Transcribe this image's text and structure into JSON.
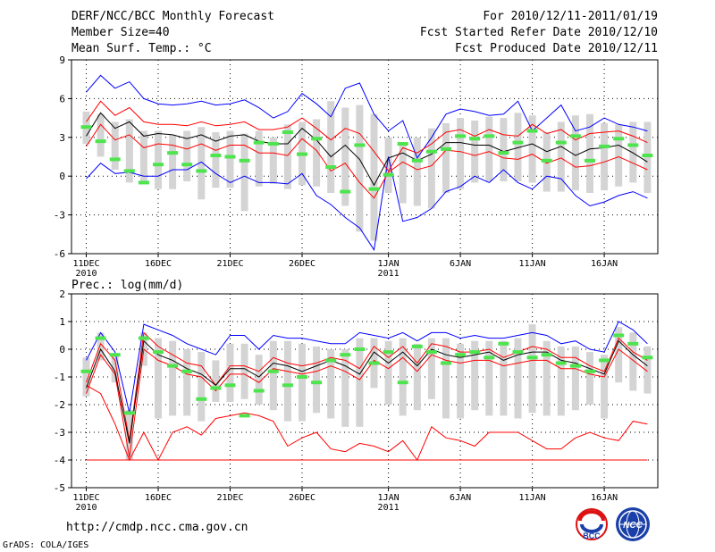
{
  "header": {
    "title": "DERF/NCC/BCC Monthly Forecast",
    "member_size": "Member Size=40",
    "variable": "Mean Surf. Temp.: °C",
    "period": "For 2010/12/11-2011/01/19",
    "start_ref": "Fcst Started Refer Date 2010/12/10",
    "produced": "Fcst Produced Date 2010/12/11"
  },
  "footer": {
    "url": "http://cmdp.ncc.cma.gov.cn",
    "credit": "GrADS: COLA/IGES",
    "logo_bcc": "BCC",
    "logo_ncc": "NCC"
  },
  "colors": {
    "max_min": "#0000ff",
    "spread": "#ff0000",
    "mean": "#000000",
    "obs": "#4ee44e",
    "box": "#d4d4d4",
    "grid": "#000000"
  },
  "chart_data": [
    {
      "type": "box",
      "title": "Mean Surf. Temp.: °C",
      "ylim": [
        -6,
        9
      ],
      "yticks": [
        -6,
        -3,
        0,
        3,
        6,
        9
      ],
      "xticks": [
        {
          "day": 1,
          "label": "11DEC",
          "sub": "2010"
        },
        {
          "day": 6,
          "label": "16DEC"
        },
        {
          "day": 11,
          "label": "21DEC"
        },
        {
          "day": 16,
          "label": "26DEC"
        },
        {
          "day": 22,
          "label": "1JAN",
          "sub": "2011"
        },
        {
          "day": 27,
          "label": "6JAN"
        },
        {
          "day": 32,
          "label": "11JAN"
        },
        {
          "day": 37,
          "label": "16JAN"
        }
      ],
      "days": 40,
      "series": [
        {
          "name": "max",
          "values": [
            6.5,
            7.8,
            6.8,
            7.3,
            6.0,
            5.6,
            5.5,
            5.6,
            5.8,
            5.5,
            5.6,
            5.9,
            5.3,
            4.5,
            5.0,
            6.4,
            5.6,
            4.6,
            6.8,
            7.2,
            4.8,
            3.5,
            4.3,
            1.4,
            3.0,
            4.8,
            5.2,
            5.0,
            4.7,
            4.8,
            5.8,
            3.5,
            4.5,
            5.5,
            3.5,
            3.8,
            4.5,
            4.0,
            3.8,
            3.5
          ]
        },
        {
          "name": "upper",
          "values": [
            4.2,
            5.8,
            4.7,
            5.3,
            4.2,
            4.0,
            4.0,
            3.9,
            4.2,
            3.9,
            4.0,
            4.2,
            3.6,
            3.6,
            3.8,
            4.5,
            3.7,
            2.8,
            3.7,
            3.3,
            1.9,
            0.4,
            2.2,
            1.8,
            2.5,
            3.4,
            3.6,
            3.1,
            3.6,
            3.2,
            3.1,
            4.0,
            3.3,
            3.6,
            2.8,
            3.3,
            3.4,
            3.5,
            3.1,
            2.6
          ]
        },
        {
          "name": "mean",
          "values": [
            3.1,
            4.9,
            3.7,
            4.2,
            3.1,
            3.3,
            3.2,
            2.9,
            3.2,
            2.7,
            3.1,
            3.2,
            2.7,
            2.5,
            2.5,
            3.7,
            2.8,
            1.5,
            2.4,
            1.3,
            -0.7,
            1.4,
            1.8,
            1.2,
            1.7,
            2.6,
            2.6,
            2.4,
            2.4,
            1.9,
            2.2,
            2.5,
            1.9,
            2.3,
            1.6,
            2.1,
            2.2,
            2.4,
            1.8,
            1.1
          ]
        },
        {
          "name": "lower",
          "values": [
            2.3,
            4.0,
            2.8,
            3.2,
            2.2,
            2.5,
            2.4,
            2.1,
            2.5,
            2.0,
            2.4,
            2.4,
            1.8,
            1.8,
            1.6,
            2.9,
            2.0,
            0.4,
            1.0,
            -0.5,
            -1.7,
            0.3,
            1.1,
            0.5,
            0.8,
            2.0,
            1.9,
            1.6,
            1.9,
            1.4,
            1.3,
            1.7,
            1.0,
            1.4,
            0.7,
            0.8,
            1.1,
            1.5,
            1.0,
            0.5
          ]
        },
        {
          "name": "min",
          "values": [
            -0.2,
            1.0,
            0.2,
            0.3,
            0.0,
            0.0,
            0.5,
            0.5,
            1.1,
            0.2,
            -0.5,
            0.0,
            -0.5,
            -0.5,
            -0.6,
            0.2,
            -1.5,
            -2.2,
            -3.2,
            -4.0,
            -5.7,
            1.5,
            -3.5,
            -3.2,
            -2.5,
            -1.2,
            -0.8,
            0.0,
            -0.5,
            0.5,
            -0.5,
            -1.0,
            0.0,
            -0.2,
            -1.5,
            -2.3,
            -2.0,
            -1.5,
            -1.2,
            -1.7
          ]
        },
        {
          "name": "box_top",
          "values": [
            5.0,
            4.8,
            4.2,
            4.4,
            3.5,
            3.5,
            3.2,
            3.5,
            3.8,
            3.4,
            3.5,
            3.3,
            3.5,
            3.0,
            4.0,
            4.2,
            4.4,
            5.8,
            5.3,
            5.5,
            4.8,
            3.0,
            2.6,
            3.0,
            3.7,
            4.1,
            4.5,
            4.3,
            4.6,
            4.5,
            4.9,
            4.7,
            3.4,
            4.2,
            4.7,
            4.8,
            4.1,
            4.0,
            4.2,
            4.2
          ]
        },
        {
          "name": "box_bottom",
          "values": [
            2.5,
            1.5,
            0.5,
            -0.5,
            -0.4,
            -1.0,
            -1.0,
            -0.4,
            -1.8,
            -0.9,
            -0.9,
            -2.7,
            -0.8,
            -0.6,
            -1.0,
            -0.7,
            -0.8,
            -1.3,
            -2.3,
            -4.3,
            -5.0,
            -1.3,
            -2.1,
            -2.3,
            -2.5,
            -1.3,
            -1.0,
            -0.5,
            -0.4,
            -0.4,
            -0.4,
            -0.5,
            -1.2,
            -1.2,
            -1.1,
            -1.3,
            -1.1,
            -0.8,
            -0.5,
            -1.3
          ]
        },
        {
          "name": "observed",
          "values": [
            3.8,
            2.7,
            1.3,
            0.4,
            -0.5,
            0.9,
            1.8,
            0.9,
            0.4,
            1.6,
            1.5,
            1.2,
            2.6,
            2.5,
            3.4,
            1.7,
            2.9,
            0.7,
            -1.2,
            2.4,
            -1.0,
            0.1,
            2.5,
            1.2,
            1.9,
            2.1,
            3.1,
            2.9,
            3.1,
            1.8,
            2.6,
            3.5,
            1.2,
            2.6,
            3.1,
            1.2,
            2.3,
            2.9,
            2.4,
            1.6
          ]
        }
      ]
    },
    {
      "type": "box",
      "title": "Prec.: log(mm/d)",
      "ylim": [
        -5,
        2
      ],
      "yticks": [
        -5,
        -4,
        -3,
        -2,
        -1,
        0,
        1,
        2
      ],
      "xticks": [
        {
          "day": 1,
          "label": "11DEC",
          "sub": "2010"
        },
        {
          "day": 6,
          "label": "16DEC"
        },
        {
          "day": 11,
          "label": "21DEC"
        },
        {
          "day": 16,
          "label": "26DEC"
        },
        {
          "day": 22,
          "label": "1JAN",
          "sub": "2011"
        },
        {
          "day": 27,
          "label": "6JAN"
        },
        {
          "day": 32,
          "label": "11JAN"
        },
        {
          "day": 37,
          "label": "16JAN"
        }
      ],
      "days": 40,
      "series": [
        {
          "name": "max",
          "values": [
            -0.4,
            0.6,
            -0.1,
            -2.3,
            0.9,
            0.7,
            0.5,
            0.2,
            0.0,
            -0.2,
            0.5,
            0.5,
            0.0,
            0.5,
            0.4,
            0.4,
            0.3,
            0.2,
            0.2,
            0.6,
            0.5,
            0.4,
            0.6,
            0.3,
            0.6,
            0.6,
            0.4,
            0.5,
            0.4,
            0.4,
            0.5,
            0.6,
            0.5,
            0.2,
            0.3,
            0.0,
            -0.1,
            1.0,
            0.7,
            0.2
          ]
        },
        {
          "name": "upper",
          "values": [
            -1.2,
            0.2,
            -0.4,
            -3.3,
            0.6,
            0.1,
            -0.2,
            -0.5,
            -0.6,
            -1.3,
            -0.6,
            -0.6,
            -0.8,
            -0.3,
            -0.5,
            -0.6,
            -0.5,
            -0.3,
            -0.4,
            -0.7,
            0.1,
            -0.3,
            0.1,
            -0.5,
            0.2,
            0.1,
            -0.1,
            -0.1,
            0.0,
            -0.3,
            -0.1,
            0.1,
            0.0,
            -0.3,
            -0.3,
            -0.6,
            -0.8,
            0.4,
            -0.1,
            -0.4
          ]
        },
        {
          "name": "mean",
          "values": [
            -1.4,
            0.0,
            -0.8,
            -3.4,
            0.3,
            -0.2,
            -0.4,
            -0.7,
            -0.9,
            -1.3,
            -0.7,
            -0.7,
            -1.0,
            -0.5,
            -0.6,
            -0.8,
            -0.6,
            -0.4,
            -0.6,
            -0.9,
            -0.1,
            -0.5,
            -0.1,
            -0.6,
            0.0,
            -0.2,
            -0.3,
            -0.2,
            -0.1,
            -0.4,
            -0.2,
            -0.1,
            -0.1,
            -0.4,
            -0.5,
            -0.7,
            -0.9,
            0.3,
            -0.2,
            -0.6
          ]
        },
        {
          "name": "lower",
          "values": [
            -1.6,
            -0.2,
            -0.9,
            -3.9,
            0.0,
            -0.4,
            -0.6,
            -0.9,
            -1.0,
            -1.5,
            -0.9,
            -0.9,
            -1.2,
            -0.7,
            -0.8,
            -0.9,
            -0.8,
            -0.6,
            -0.8,
            -1.1,
            -0.4,
            -0.7,
            -0.3,
            -0.8,
            -0.2,
            -0.4,
            -0.5,
            -0.4,
            -0.4,
            -0.6,
            -0.5,
            -0.4,
            -0.4,
            -0.7,
            -0.7,
            -0.9,
            -1.0,
            0.0,
            -0.4,
            -0.8
          ]
        },
        {
          "name": "min_spread",
          "values": [
            -1.3,
            -1.6,
            -2.7,
            -4.0,
            -3.0,
            -4.0,
            -3.0,
            -2.8,
            -3.1,
            -2.5,
            -2.4,
            -2.3,
            -2.4,
            -2.6,
            -3.5,
            -3.2,
            -3.0,
            -3.6,
            -3.7,
            -3.4,
            -3.5,
            -3.7,
            -3.3,
            -4.0,
            -2.8,
            -3.2,
            -3.3,
            -3.5,
            -3.0,
            -3.0,
            -3.0,
            -3.3,
            -3.6,
            -3.6,
            -3.2,
            -3.0,
            -3.2,
            -3.3,
            -2.6,
            -2.7
          ]
        },
        {
          "name": "floor",
          "values": [
            -4.0,
            -4.0,
            -4.0,
            -4.0,
            -4.0,
            -4.0,
            -4.0,
            -4.0,
            -4.0,
            -4.0,
            -4.0,
            -4.0,
            -4.0,
            -4.0,
            -4.0,
            -4.0,
            -4.0,
            -4.0,
            -4.0,
            -4.0,
            -4.0,
            -4.0,
            -4.0,
            -4.0,
            -4.0,
            -4.0,
            -4.0,
            -4.0,
            -4.0,
            -4.0,
            -4.0,
            -4.0,
            -4.0,
            -4.0,
            -4.0,
            -4.0,
            -4.0,
            -4.0,
            -4.0,
            -4.0
          ]
        },
        {
          "name": "box_top",
          "values": [
            -0.3,
            0.6,
            -0.2,
            -2.2,
            0.6,
            0.4,
            0.3,
            0.0,
            -0.1,
            -0.4,
            0.2,
            0.2,
            -0.2,
            0.3,
            0.3,
            0.2,
            0.1,
            0.0,
            0.0,
            0.4,
            0.4,
            0.3,
            0.4,
            0.2,
            0.4,
            0.4,
            0.2,
            0.3,
            0.3,
            0.3,
            0.4,
            0.9,
            0.3,
            0.1,
            0.1,
            -0.1,
            -0.2,
            0.8,
            0.6,
            0.1
          ]
        },
        {
          "name": "box_bottom",
          "values": [
            -1.7,
            -0.4,
            -1.2,
            -4.0,
            -0.6,
            -2.5,
            -2.4,
            -2.4,
            -2.6,
            -1.9,
            -1.9,
            -1.8,
            -2.0,
            -2.2,
            -2.6,
            -2.6,
            -2.3,
            -2.5,
            -2.8,
            -2.8,
            -1.4,
            -2.0,
            -2.4,
            -2.2,
            -1.8,
            -2.5,
            -2.5,
            -2.2,
            -2.4,
            -2.4,
            -2.5,
            -2.3,
            -2.4,
            -2.4,
            -2.2,
            -2.0,
            -2.5,
            -1.2,
            -1.5,
            -1.6
          ]
        },
        {
          "name": "observed",
          "values": [
            -0.8,
            0.4,
            -0.2,
            -2.3,
            0.4,
            -0.1,
            -0.6,
            -0.8,
            -1.8,
            -1.4,
            -1.3,
            -2.4,
            -1.5,
            -0.8,
            -1.3,
            -1.0,
            -1.2,
            -0.4,
            -0.2,
            0.0,
            -0.5,
            -0.1,
            -1.2,
            0.1,
            -0.1,
            -0.5,
            -0.2,
            -0.1,
            -0.3,
            0.2,
            -0.1,
            -0.3,
            -0.2,
            -0.5,
            -0.6,
            -0.8,
            -0.4,
            0.5,
            0.2,
            -0.3
          ]
        }
      ]
    }
  ]
}
